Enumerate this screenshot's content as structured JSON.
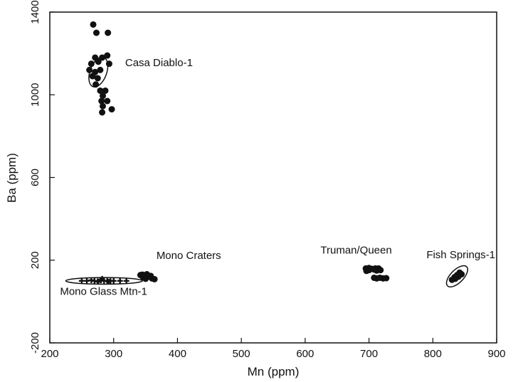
{
  "chart_data": {
    "type": "scatter",
    "title": "",
    "xlabel": "Mn (ppm)",
    "ylabel": "Ba (ppm)",
    "xlim": [
      200,
      900
    ],
    "ylim": [
      -200,
      1400
    ],
    "x_ticks": [
      200,
      300,
      400,
      500,
      600,
      700,
      800,
      900
    ],
    "y_ticks": [
      -200,
      200,
      600,
      1000,
      1400
    ],
    "grid": false,
    "legend": "none",
    "series": [
      {
        "name": "Casa Diablo-1",
        "marker": "circle",
        "points": [
          [
            268,
            1340
          ],
          [
            273,
            1300
          ],
          [
            291,
            1300
          ],
          [
            271,
            1180
          ],
          [
            282,
            1180
          ],
          [
            290,
            1190
          ],
          [
            265,
            1150
          ],
          [
            276,
            1160
          ],
          [
            293,
            1150
          ],
          [
            262,
            1120
          ],
          [
            271,
            1110
          ],
          [
            279,
            1120
          ],
          [
            267,
            1090
          ],
          [
            275,
            1080
          ],
          [
            272,
            1050
          ],
          [
            279,
            1020
          ],
          [
            287,
            1020
          ],
          [
            283,
            995
          ],
          [
            281,
            970
          ],
          [
            290,
            970
          ],
          [
            283,
            945
          ],
          [
            297,
            930
          ],
          [
            282,
            915
          ]
        ],
        "ellipse": {
          "cx": 276,
          "cy": 1110,
          "rx": 13,
          "ry": 75,
          "angle_deg": 20
        }
      },
      {
        "name": "Mono Glass Mtn-1",
        "marker": "plus-cluster",
        "points": [
          [
            250,
            100
          ],
          [
            258,
            100
          ],
          [
            265,
            103
          ],
          [
            270,
            100
          ],
          [
            275,
            98
          ],
          [
            280,
            102
          ],
          [
            285,
            100
          ],
          [
            290,
            101
          ],
          [
            295,
            99
          ],
          [
            300,
            100
          ],
          [
            310,
            100
          ],
          [
            320,
            100
          ],
          [
            282,
            110
          ],
          [
            276,
            96
          ],
          [
            292,
            96
          ]
        ],
        "ellipse": {
          "cx": 285,
          "cy": 100,
          "rx": 60,
          "ry": 16,
          "angle_deg": 0
        }
      },
      {
        "name": "Mono Craters",
        "marker": "circle",
        "points": [
          [
            342,
            128
          ],
          [
            348,
            125
          ],
          [
            354,
            120
          ],
          [
            360,
            112
          ],
          [
            346,
            118
          ],
          [
            352,
            132
          ],
          [
            358,
            124
          ],
          [
            364,
            108
          ],
          [
            350,
            110
          ],
          [
            345,
            130
          ]
        ]
      },
      {
        "name": "Truman/Queen",
        "marker": "circle",
        "points": [
          [
            695,
            160
          ],
          [
            700,
            162
          ],
          [
            705,
            158
          ],
          [
            710,
            160
          ],
          [
            715,
            160
          ],
          [
            700,
            152
          ],
          [
            708,
            155
          ],
          [
            712,
            150
          ],
          [
            696,
            148
          ],
          [
            718,
            152
          ],
          [
            708,
            115
          ],
          [
            712,
            112
          ],
          [
            717,
            115
          ],
          [
            722,
            112
          ],
          [
            727,
            113
          ]
        ]
      },
      {
        "name": "Fish Springs-1",
        "marker": "circle",
        "points": [
          [
            830,
            105
          ],
          [
            834,
            118
          ],
          [
            838,
            128
          ],
          [
            842,
            140
          ],
          [
            845,
            132
          ],
          [
            835,
            110
          ],
          [
            840,
            120
          ]
        ],
        "ellipse": {
          "cx": 838,
          "cy": 122,
          "rx": 21,
          "ry": 36,
          "angle_deg": 45
        }
      }
    ],
    "annotations": [
      {
        "text": "Casa Diablo-1",
        "x": 318,
        "y": 1138
      },
      {
        "text": "Mono Craters",
        "x": 367,
        "y": 206
      },
      {
        "text": "Truman/Queen",
        "x": 624,
        "y": 232
      },
      {
        "text": "Fish Springs-1",
        "x": 790,
        "y": 210
      },
      {
        "text": "Mono Glass Mtn-1",
        "x": 216,
        "y": 32
      }
    ]
  }
}
